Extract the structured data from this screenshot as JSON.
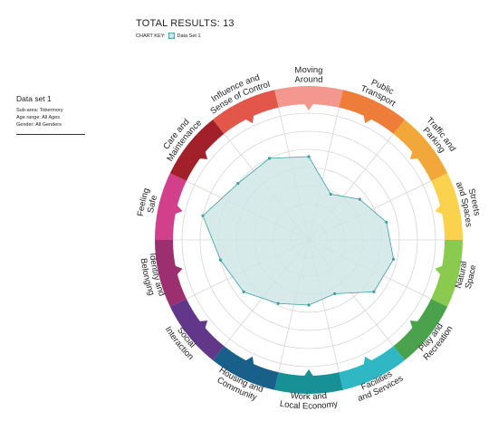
{
  "header": {
    "total_label": "TOTAL RESULTS: 13",
    "key_label": "CHART KEY:",
    "key_series": "Data Set 1"
  },
  "dataset": {
    "title": "Data set 1",
    "lines": [
      "Sub-area: Tobermory",
      "Age range: All Ages",
      "Gender: All Genders"
    ]
  },
  "colors": {
    "fill": "#cfe6e6",
    "stroke": "#3aa0a6",
    "grid": "#d6d6d6"
  },
  "chart_data": {
    "type": "radar",
    "scale_max": 7,
    "rings": 7,
    "series": [
      {
        "name": "Data Set 1",
        "values": [
          4.6,
          2.8,
          3.6,
          4.4,
          4.8,
          4.6,
          3.3,
          3.6,
          3.9,
          4.6,
          5.0,
          6.0,
          5.0,
          5.0
        ]
      }
    ],
    "categories": [
      {
        "label": [
          "Moving",
          "Around"
        ],
        "color": "#f4978e"
      },
      {
        "label": [
          "Public",
          "Transport"
        ],
        "color": "#ee7d3a"
      },
      {
        "label": [
          "Traffic and",
          "Parking"
        ],
        "color": "#f2a73a"
      },
      {
        "label": [
          "Streets",
          "and Spaces"
        ],
        "color": "#fbd24e"
      },
      {
        "label": [
          "Natural",
          "Space"
        ],
        "color": "#8acb4f"
      },
      {
        "label": [
          "Play and",
          "Recreation"
        ],
        "color": "#4aa34c"
      },
      {
        "label": [
          "Facilities",
          "and Services"
        ],
        "color": "#2fb8c4"
      },
      {
        "label": [
          "Work and",
          "Local Economy"
        ],
        "color": "#179096"
      },
      {
        "label": [
          "Housing and",
          "Community"
        ],
        "color": "#185f8a"
      },
      {
        "label": [
          "Social",
          "Interaction"
        ],
        "color": "#62378a"
      },
      {
        "label": [
          "Identity and",
          "Belonging"
        ],
        "color": "#9b2f6f"
      },
      {
        "label": [
          "Feeling",
          "Safe"
        ],
        "color": "#d2408c"
      },
      {
        "label": [
          "Care and",
          "Maintenance"
        ],
        "color": "#a2202a"
      },
      {
        "label": [
          "Influence and",
          "Sense of Control"
        ],
        "color": "#e2574a"
      }
    ]
  }
}
